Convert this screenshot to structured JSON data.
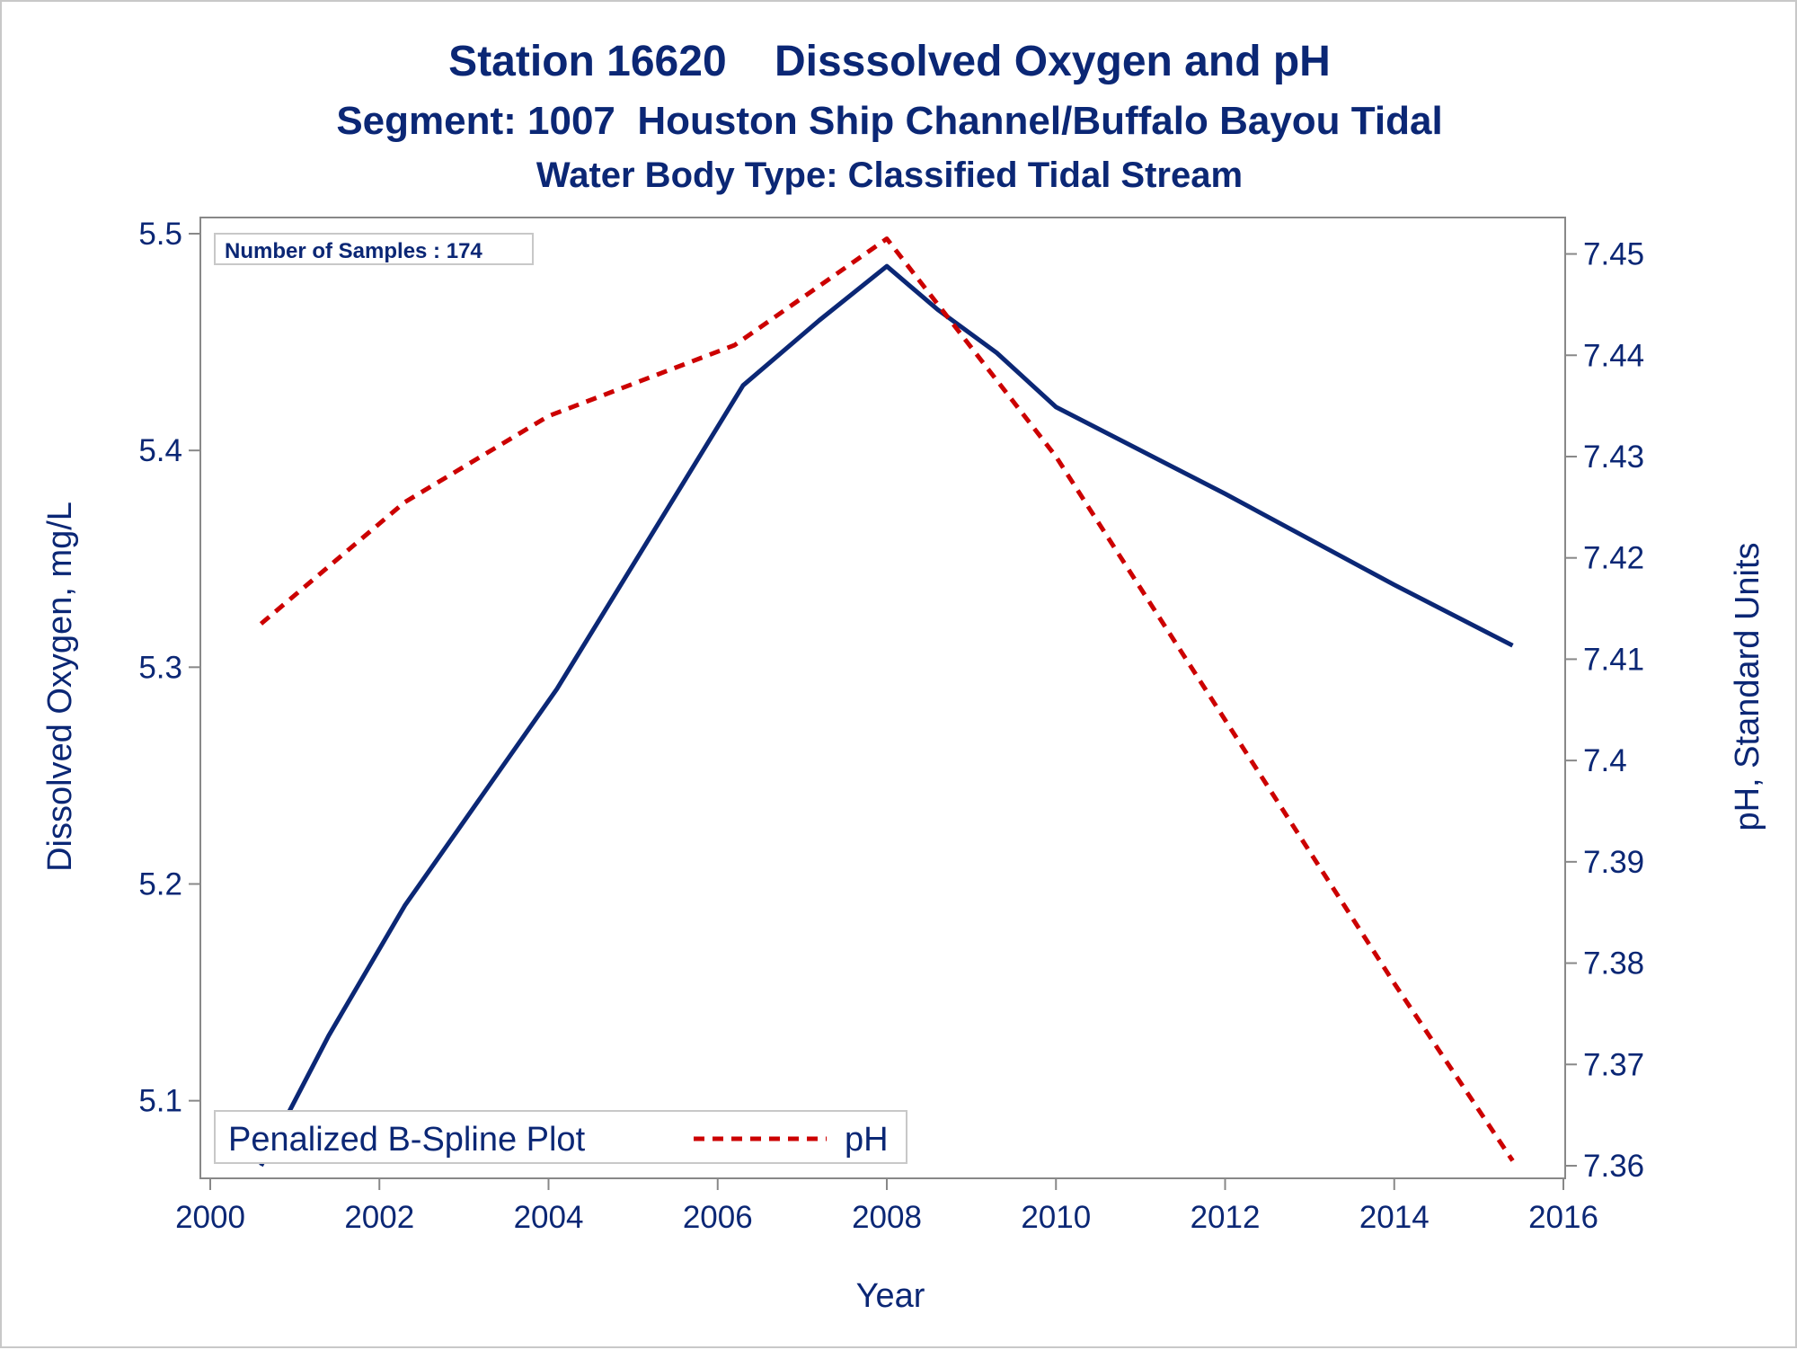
{
  "colors": {
    "text": "#0b2775",
    "do_line": "#0b2775",
    "ph_line": "#cc0000",
    "axis": "#888888",
    "frame": "#c8c8c8"
  },
  "chart_data": {
    "type": "line",
    "title": "Station 16620    Disssolved Oxygen and pH",
    "subtitle": "Segment: 1007  Houston Ship Channel/Buffalo Bayou Tidal",
    "subtitle2": "Water Body Type: Classified Tidal Stream",
    "xlabel": "Year",
    "ylabel": "Dissolved Oxygen, mg/L",
    "y2label": "pH, Standard Units",
    "xlim": [
      2000,
      2016
    ],
    "ylim": [
      5.07,
      5.5
    ],
    "y2lim": [
      7.36,
      7.452
    ],
    "x_ticks": [
      "2000",
      "2002",
      "2004",
      "2006",
      "2008",
      "2010",
      "2012",
      "2014",
      "2016"
    ],
    "y_ticks": [
      "5.1",
      "5.2",
      "5.3",
      "5.4",
      "5.5"
    ],
    "y2_ticks": [
      "7.36",
      "7.37",
      "7.38",
      "7.39",
      "7.4",
      "7.41",
      "7.42",
      "7.43",
      "7.44",
      "7.45"
    ],
    "grid": false,
    "inset_label": "Number of Samples : 174",
    "legend": {
      "title": "Penalized B-Spline Plot",
      "placement": "bottom-left",
      "entries": [
        "pH"
      ]
    },
    "series": [
      {
        "axis": "left",
        "style": "solid",
        "x": [
          2000.6,
          2001.4,
          2002.3,
          2003.2,
          2004.1,
          2005.2,
          2006.3,
          2007.2,
          2008.0,
          2008.6,
          2009.3,
          2010.0,
          2012.0,
          2014.0,
          2015.4
        ],
        "values": [
          5.07,
          5.13,
          5.19,
          5.24,
          5.29,
          5.36,
          5.43,
          5.46,
          5.485,
          5.465,
          5.445,
          5.42,
          5.38,
          5.338,
          5.31
        ]
      },
      {
        "name": "pH",
        "axis": "right",
        "style": "dashed",
        "x": [
          2000.6,
          2002.3,
          2004.0,
          2006.2,
          2008.0,
          2010.0,
          2012.0,
          2014.0,
          2015.4
        ],
        "values": [
          7.4135,
          7.4255,
          7.434,
          7.441,
          7.4515,
          7.43,
          7.404,
          7.378,
          7.3605
        ]
      }
    ]
  }
}
